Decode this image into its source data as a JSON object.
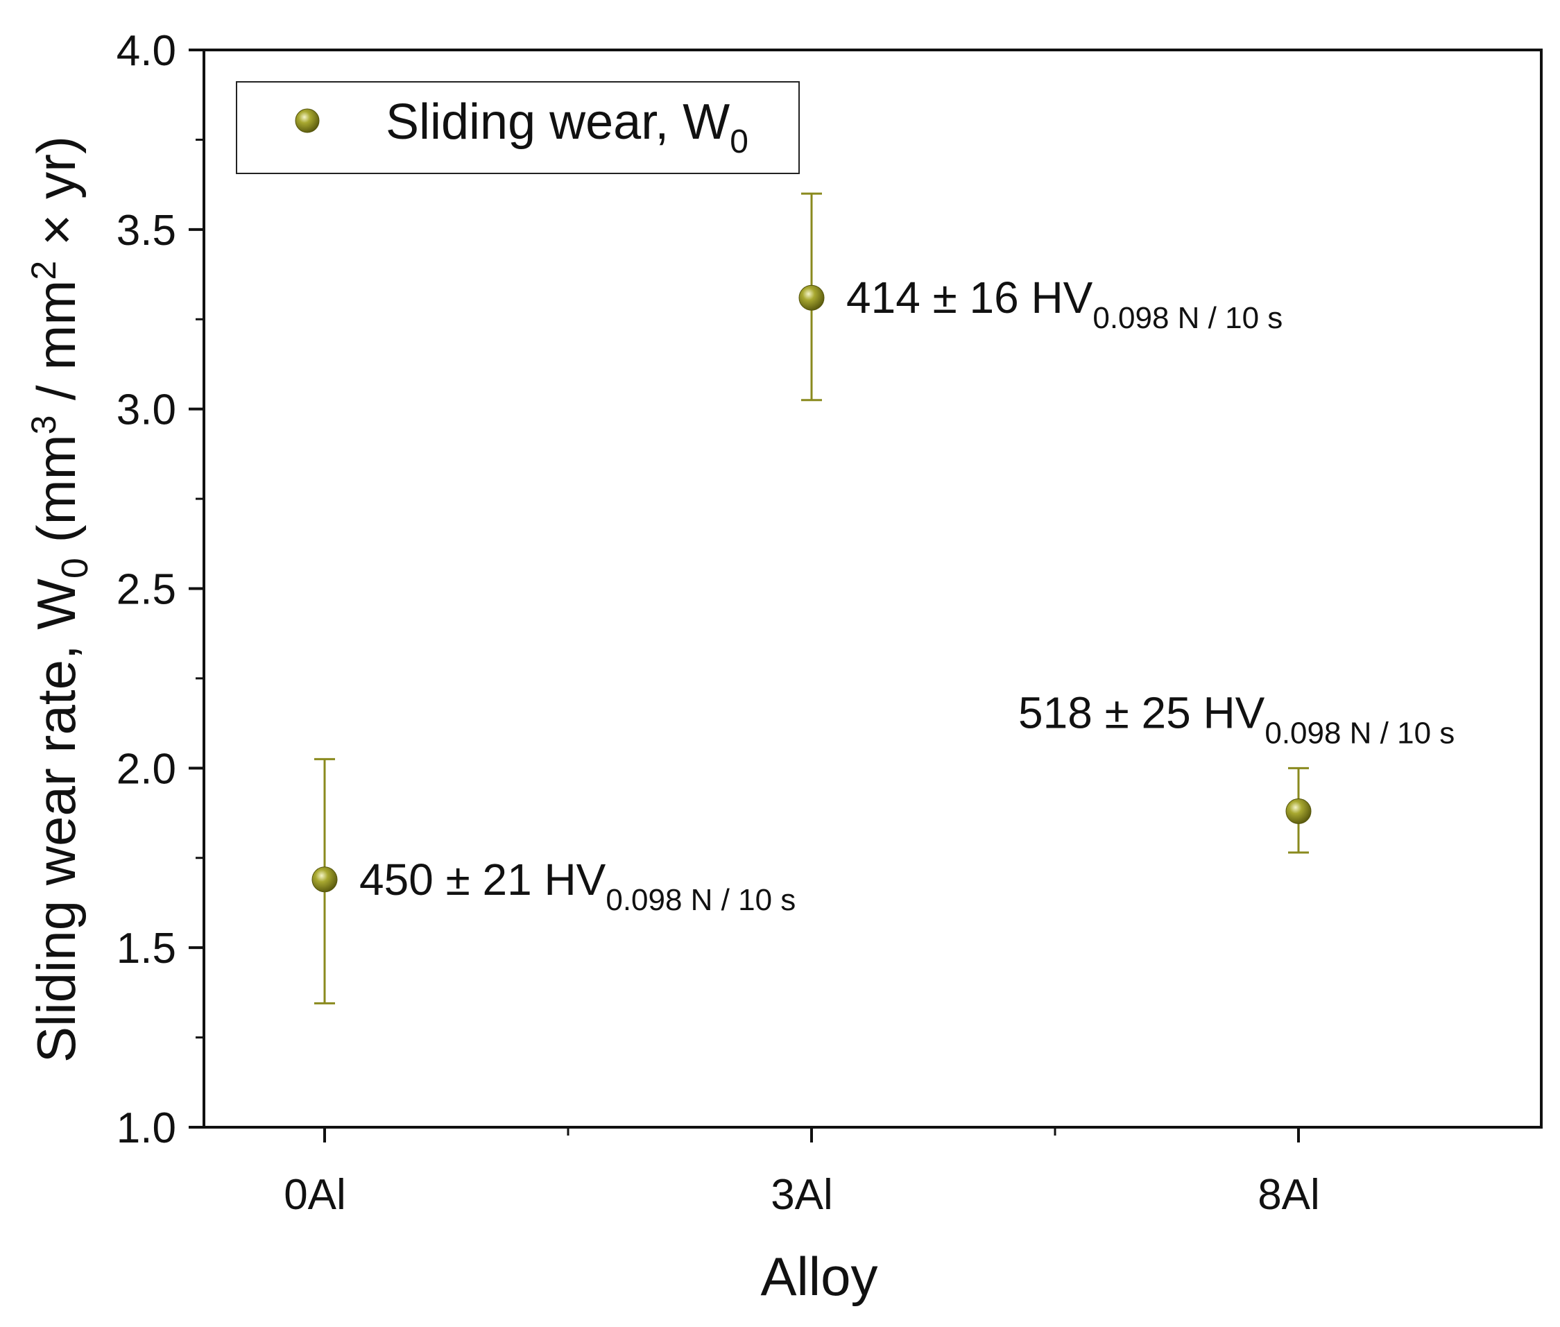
{
  "chart_data": {
    "type": "scatter",
    "title": "",
    "xlabel": "Alloy",
    "ylabel": {
      "prefix": "Sliding wear rate, W",
      "prefix_sub": "0",
      "units_open": " (mm",
      "sup1": "3",
      "units_mid": " / mm",
      "sup2": "2",
      "units_close": " × yr)"
    },
    "categories": [
      "0Al",
      "3Al",
      "8Al"
    ],
    "ylim": [
      1.0,
      4.0
    ],
    "yticks": [
      "1.0",
      "1.5",
      "2.0",
      "2.5",
      "3.0",
      "3.5",
      "4.0"
    ],
    "y_minor_step": 0.25,
    "grid": false,
    "series": [
      {
        "name": "Sliding wear, W",
        "name_sub": "0",
        "color": "#8a8a1e",
        "values": [
          1.69,
          3.31,
          1.88
        ],
        "err_low": [
          1.345,
          3.025,
          1.765
        ],
        "err_high": [
          2.025,
          3.6,
          2.0
        ]
      }
    ],
    "legend": {
      "placement": "top-left",
      "label": "Sliding wear, W",
      "label_sub": "0"
    },
    "annotations": [
      {
        "category": "0Al",
        "text": "450 ± 21 HV",
        "sub": "0.098 N / 10 s",
        "anchor": "right-of-point"
      },
      {
        "category": "3Al",
        "text": "414 ± 16 HV",
        "sub": "0.098 N / 10 s",
        "anchor": "right-of-point"
      },
      {
        "category": "8Al",
        "text": "518 ± 25 HV",
        "sub": "0.098 N / 10 s",
        "anchor": "above-point"
      }
    ]
  }
}
